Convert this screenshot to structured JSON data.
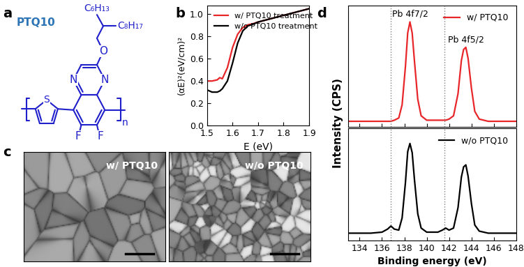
{
  "panel_labels": [
    "a",
    "b",
    "c",
    "d"
  ],
  "structure": {
    "name": "PTQ10",
    "atoms": {
      "N1": "N",
      "N2": "N",
      "O": "O",
      "S": "S",
      "F1": "F",
      "F2": "F"
    },
    "side_chains": [
      "C₆H₁₃",
      "C₈H₁₇"
    ],
    "repeat": "n",
    "color": "#1f1fcc",
    "name_color": "#2e75b6"
  },
  "images": [
    {
      "label": "w/ PTQ10"
    },
    {
      "label": "w/o PTQ10"
    }
  ],
  "chart_data": [
    {
      "type": "line",
      "xlabel": "E (eV)",
      "ylabel": "(αE)²(eV/cm)²",
      "x": [
        1.5,
        1.52,
        1.54,
        1.55,
        1.56,
        1.58,
        1.6,
        1.62,
        1.64,
        1.66,
        1.68,
        1.7,
        1.75,
        1.8,
        1.85,
        1.9
      ],
      "series": [
        {
          "name": "w/ PTQ10 treatment",
          "color": "#e8262a",
          "values": [
            0.4,
            0.4,
            0.41,
            0.43,
            0.42,
            0.52,
            0.7,
            0.82,
            0.88,
            0.905,
            0.915,
            0.93,
            0.96,
            0.99,
            1.02,
            1.05
          ]
        },
        {
          "name": "w/o PTQ10 treatment",
          "color": "#000000",
          "values": [
            0.32,
            0.3,
            0.3,
            0.31,
            0.33,
            0.4,
            0.56,
            0.74,
            0.85,
            0.895,
            0.91,
            0.93,
            0.96,
            0.99,
            1.02,
            1.05
          ]
        }
      ],
      "xlim": [
        1.5,
        1.9
      ],
      "ylim": [
        0.0,
        1.08
      ],
      "xticks": [
        1.5,
        1.6,
        1.7,
        1.8,
        1.9
      ],
      "yticks": [
        0.0,
        0.2,
        0.4,
        0.6,
        0.8,
        1.0
      ],
      "legend": "upper left"
    },
    {
      "type": "line",
      "x": [
        133,
        134,
        135,
        136,
        136.5,
        136.8,
        137.1,
        137.5,
        137.8,
        138.1,
        138.3,
        138.5,
        138.7,
        138.9,
        139.2,
        139.5,
        140,
        141,
        141.4,
        141.7,
        142,
        142.4,
        142.8,
        143.1,
        143.3,
        143.5,
        143.7,
        144,
        144.3,
        144.7,
        145.5,
        146,
        147,
        148
      ],
      "series": [
        {
          "name": "w/ PTQ10",
          "color": "#e8262a",
          "values": [
            0.05,
            0.05,
            0.05,
            0.05,
            0.05,
            0.05,
            0.06,
            0.08,
            0.2,
            0.55,
            0.85,
            0.95,
            0.85,
            0.6,
            0.25,
            0.1,
            0.06,
            0.06,
            0.06,
            0.06,
            0.07,
            0.1,
            0.3,
            0.6,
            0.7,
            0.72,
            0.62,
            0.35,
            0.14,
            0.07,
            0.05,
            0.05,
            0.05,
            0.05
          ]
        }
      ],
      "xlim": [
        133,
        148
      ],
      "ylim": [
        0,
        1.1
      ],
      "xticks": [
        134,
        136,
        138,
        140,
        142,
        144,
        146,
        148
      ],
      "tick_labels": false,
      "legend": "upper right",
      "vlines": [
        136.8,
        141.6
      ],
      "annotations": [
        {
          "text": "Pb 4f7/2",
          "x": 138.5
        },
        {
          "text": "Pb 4f5/2",
          "x": 143.5
        }
      ]
    },
    {
      "type": "line",
      "xlabel": "Binding energy (eV)",
      "ylabel": "Intensity (CPS)",
      "x": [
        133,
        134,
        135,
        136,
        136.5,
        136.8,
        137.1,
        137.5,
        137.8,
        138.1,
        138.3,
        138.5,
        138.7,
        138.9,
        139.2,
        139.5,
        140,
        141,
        141.4,
        141.7,
        142,
        142.4,
        142.8,
        143.1,
        143.3,
        143.5,
        143.7,
        144,
        144.3,
        144.7,
        145.5,
        146,
        147,
        148
      ],
      "series": [
        {
          "name": "w/o PTQ10",
          "color": "#000000",
          "values": [
            0.07,
            0.07,
            0.07,
            0.08,
            0.11,
            0.14,
            0.11,
            0.1,
            0.22,
            0.57,
            0.87,
            0.95,
            0.86,
            0.6,
            0.26,
            0.12,
            0.08,
            0.08,
            0.1,
            0.12,
            0.1,
            0.12,
            0.32,
            0.62,
            0.72,
            0.74,
            0.63,
            0.36,
            0.15,
            0.09,
            0.07,
            0.07,
            0.07,
            0.07
          ]
        }
      ],
      "xlim": [
        133,
        148
      ],
      "ylim": [
        0,
        1.1
      ],
      "xticks": [
        134,
        136,
        138,
        140,
        142,
        144,
        146,
        148
      ],
      "tick_labels": "x",
      "legend": "upper right",
      "vlines": [
        136.8,
        141.6
      ]
    }
  ]
}
